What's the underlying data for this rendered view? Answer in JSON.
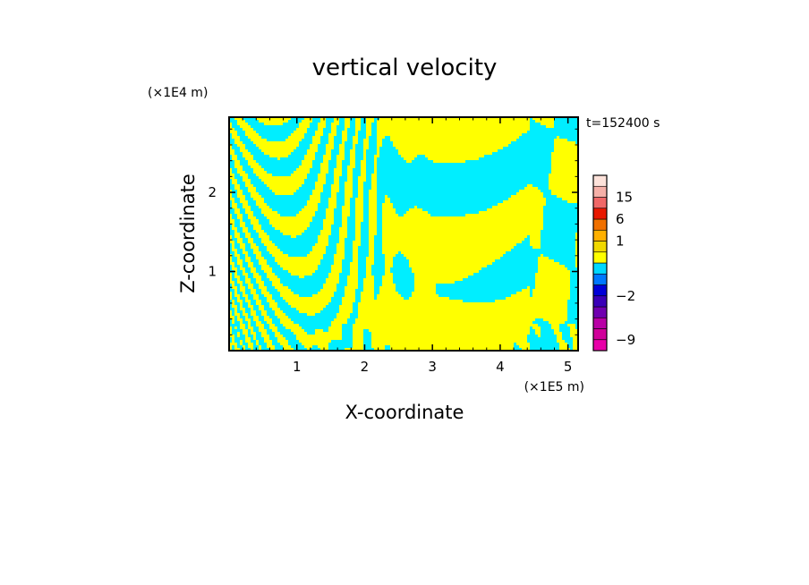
{
  "chart_data": {
    "type": "heatmap",
    "title": "vertical velocity",
    "xlabel": "X-coordinate",
    "ylabel": "Z-coordinate",
    "x_unit": "(×1E5 m)",
    "y_unit": "(×1E4 m)",
    "time_label": "t=152400 s",
    "xlim": [
      0,
      5.15
    ],
    "ylim": [
      0,
      2.95
    ],
    "x_ticks": [
      {
        "value": 1,
        "label": "1"
      },
      {
        "value": 2,
        "label": "2"
      },
      {
        "value": 3,
        "label": "3"
      },
      {
        "value": 4,
        "label": "4"
      },
      {
        "value": 5,
        "label": "5"
      }
    ],
    "y_ticks": [
      {
        "value": 1,
        "label": "1"
      },
      {
        "value": 2,
        "label": "2"
      }
    ],
    "field_colors": {
      "positive": "#ffff00",
      "negative": "#00eeff"
    },
    "colorbar": {
      "levels": [
        {
          "value": -12,
          "color": "#e800a8"
        },
        {
          "value": -9,
          "color": "#d0009a"
        },
        {
          "value": -6,
          "color": "#b800a6"
        },
        {
          "value": -4,
          "color": "#7000b0"
        },
        {
          "value": -3,
          "color": "#3a00b8"
        },
        {
          "value": -2,
          "color": "#0000d8"
        },
        {
          "value": -1,
          "color": "#0078ff"
        },
        {
          "value": -0.5,
          "color": "#00d8ff"
        },
        {
          "value": 0,
          "color": "#ffff00"
        },
        {
          "value": 0.5,
          "color": "#f0d800"
        },
        {
          "value": 1,
          "color": "#ffb000"
        },
        {
          "value": 3,
          "color": "#f07000"
        },
        {
          "value": 6,
          "color": "#e81800"
        },
        {
          "value": 10,
          "color": "#f06868"
        },
        {
          "value": 15,
          "color": "#f5b0a8"
        },
        {
          "value": 20,
          "color": "#fde2da"
        }
      ],
      "labels": [
        {
          "value": 15,
          "label": "15"
        },
        {
          "value": 6,
          "label": "6"
        },
        {
          "value": 1,
          "label": "1"
        },
        {
          "value": -2,
          "label": "−2"
        },
        {
          "value": -9,
          "label": "−9"
        }
      ]
    }
  }
}
